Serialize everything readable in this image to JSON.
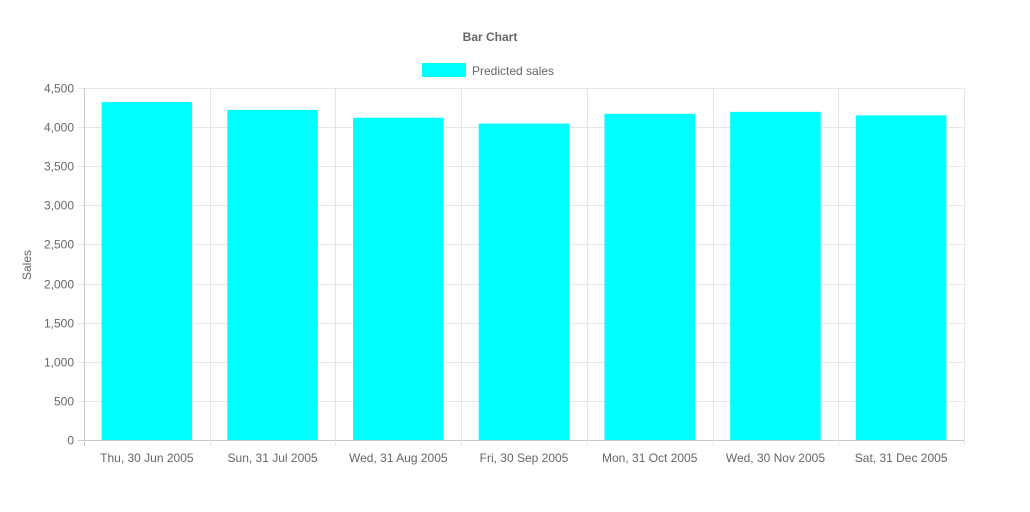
{
  "chart_data": {
    "type": "bar",
    "title": "Bar Chart",
    "xlabel": "",
    "ylabel": "Sales",
    "ylim": [
      0,
      4500
    ],
    "ytick_step": 500,
    "grid": true,
    "legend_position": "top-center",
    "categories": [
      "Thu, 30 Jun 2005",
      "Sun, 31 Jul 2005",
      "Wed, 31 Aug 2005",
      "Fri, 30 Sep 2005",
      "Mon, 31 Oct 2005",
      "Wed, 30 Nov 2005",
      "Sat, 31 Dec 2005"
    ],
    "series": [
      {
        "name": "Predicted sales",
        "color": "#00ffff",
        "values": [
          4320,
          4220,
          4120,
          4045,
          4170,
          4195,
          4150
        ]
      }
    ]
  }
}
